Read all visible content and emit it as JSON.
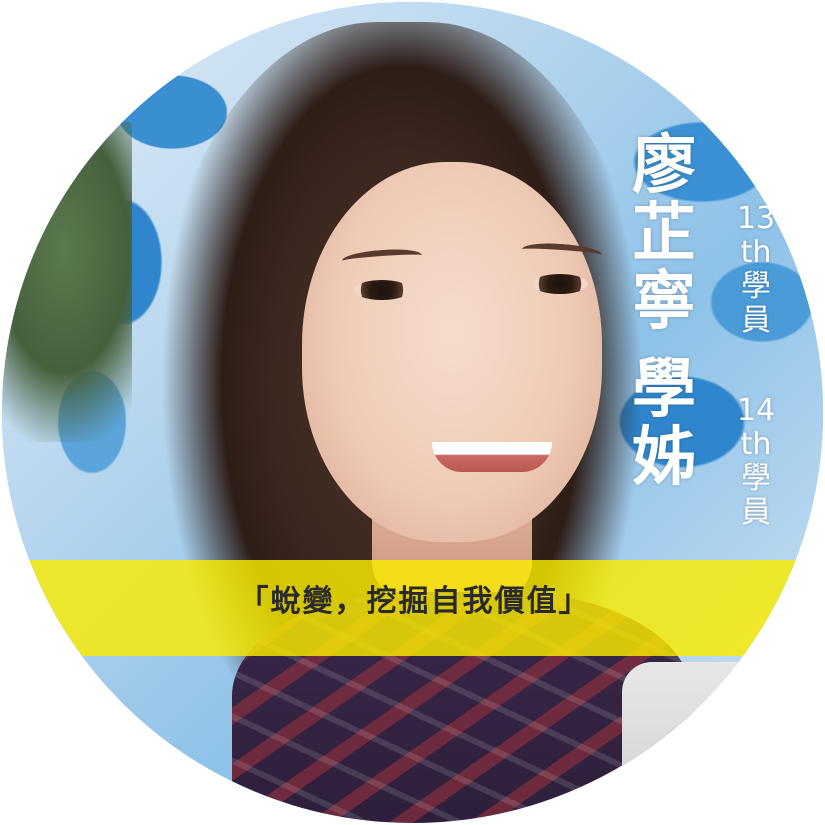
{
  "name": {
    "chars": [
      "廖",
      "芷",
      "寧"
    ],
    "title_chars": [
      "學",
      "姊"
    ]
  },
  "cohorts": [
    {
      "number": "13",
      "suffix": "th",
      "role_chars": [
        "學",
        "員"
      ]
    },
    {
      "number": "14",
      "suffix": "th",
      "role_chars": [
        "學",
        "員"
      ]
    }
  ],
  "banner": {
    "quote": "「蛻變，挖掘自我價值」",
    "color": "#faec00"
  },
  "colors": {
    "wall_blue": "#3a8fd0",
    "text_white": "#ffffff"
  }
}
